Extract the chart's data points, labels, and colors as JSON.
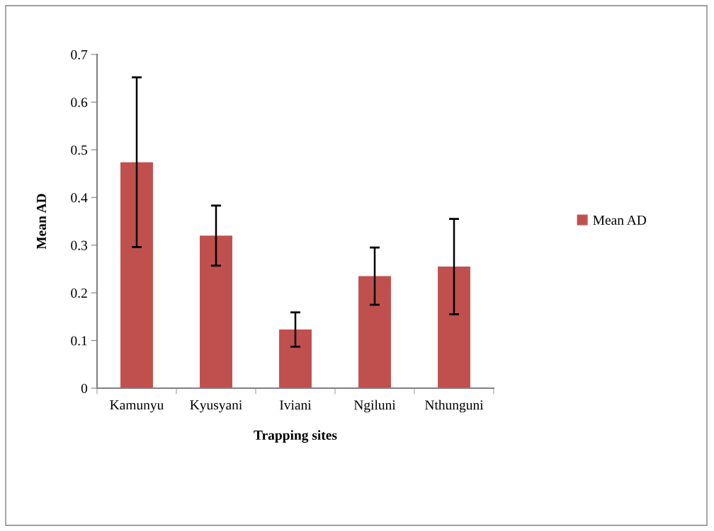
{
  "chart_data": {
    "type": "bar",
    "xlabel": "Trapping sites",
    "ylabel": "Mean AD",
    "categories": [
      "Kamunyu",
      "Kyusyani",
      "Iviani",
      "Ngiluni",
      "Nthunguni"
    ],
    "series": [
      {
        "name": "Mean AD",
        "color": "#c0504d",
        "values": [
          0.474,
          0.32,
          0.123,
          0.235,
          0.255
        ],
        "errors": [
          0.178,
          0.063,
          0.036,
          0.06,
          0.1
        ]
      }
    ],
    "ylim": [
      0,
      0.7
    ],
    "yticks": [
      0,
      0.1,
      0.2,
      0.3,
      0.4,
      0.5,
      0.6,
      0.7
    ],
    "grid": false,
    "legend": "right"
  }
}
